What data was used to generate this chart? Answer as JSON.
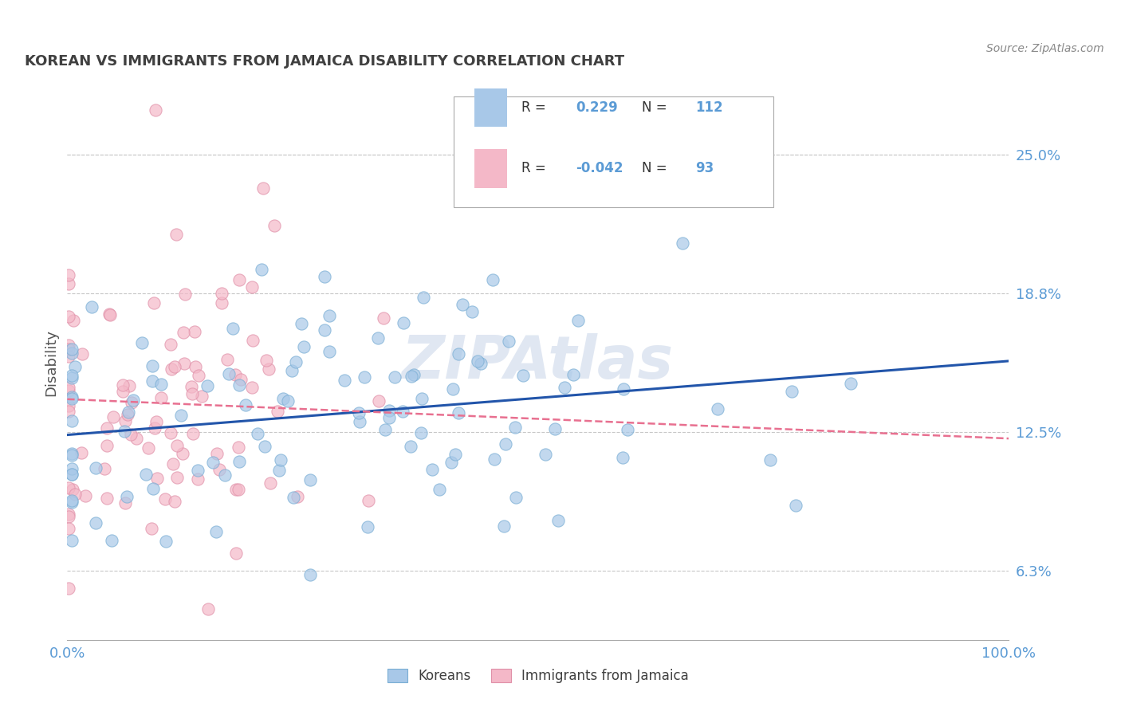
{
  "title": "KOREAN VS IMMIGRANTS FROM JAMAICA DISABILITY CORRELATION CHART",
  "source": "Source: ZipAtlas.com",
  "ylabel": "Disability",
  "xlim": [
    0,
    100
  ],
  "ylim": [
    3.125,
    28.125
  ],
  "yticks": [
    6.25,
    12.5,
    18.75,
    25.0
  ],
  "ytick_labels": [
    "6.3%",
    "12.5%",
    "18.8%",
    "25.0%"
  ],
  "xticks": [
    0,
    100
  ],
  "xtick_labels": [
    "0.0%",
    "100.0%"
  ],
  "bg_color": "#ffffff",
  "grid_color": "#c8c8c8",
  "axis_label_color": "#5b9bd5",
  "title_color": "#404040",
  "korean_color": "#a8c8e8",
  "korean_edge_color": "#7aaed4",
  "jamaica_color": "#f4b8c8",
  "jamaica_edge_color": "#e090a8",
  "korean_line_color": "#2255aa",
  "jamaica_line_color": "#e87090",
  "legend_label1": "Koreans",
  "legend_label2": "Immigrants from Jamaica",
  "korean_R": 0.229,
  "korean_N": 112,
  "jamaica_R": -0.042,
  "jamaica_N": 93,
  "korean_x_mean": 25,
  "korean_y_mean": 13.2,
  "korean_x_std": 22,
  "korean_y_std": 3.2,
  "jamaica_x_mean": 10,
  "jamaica_y_mean": 13.8,
  "jamaica_x_std": 9,
  "jamaica_y_std": 3.8,
  "watermark_text": "ZIPAtlas",
  "watermark_color": "#c8d4e8",
  "source_color": "#888888"
}
